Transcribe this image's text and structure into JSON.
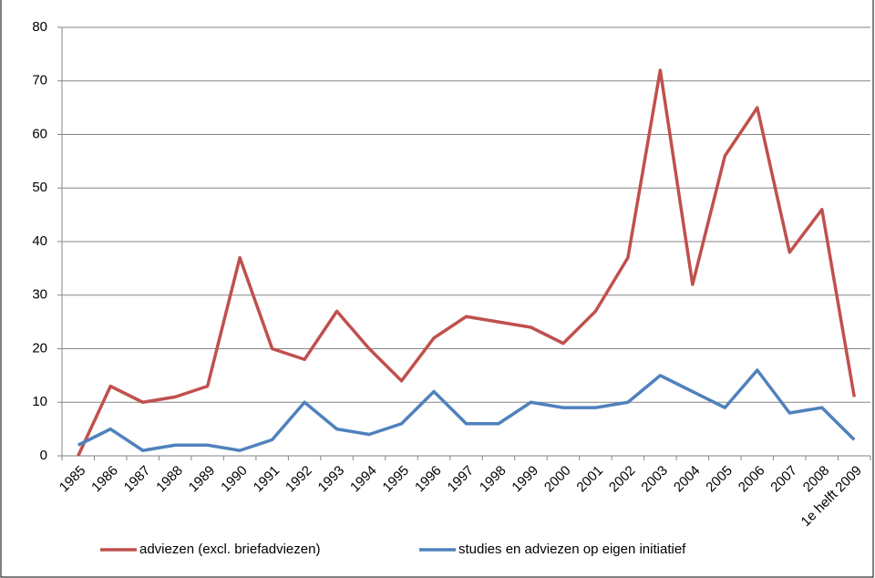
{
  "chart_data": {
    "type": "line",
    "categories": [
      "1985",
      "1986",
      "1987",
      "1988",
      "1989",
      "1990",
      "1991",
      "1992",
      "1993",
      "1994",
      "1995",
      "1996",
      "1997",
      "1998",
      "1999",
      "2000",
      "2001",
      "2002",
      "2003",
      "2004",
      "2005",
      "2006",
      "2007",
      "2008",
      "1e helft 2009"
    ],
    "series": [
      {
        "name": "adviezen (excl. briefadviezen)",
        "color": "#c0504d",
        "values": [
          0,
          13,
          10,
          11,
          13,
          37,
          20,
          18,
          27,
          20,
          14,
          22,
          26,
          25,
          24,
          21,
          27,
          37,
          72,
          32,
          56,
          65,
          38,
          46,
          11
        ]
      },
      {
        "name": "studies en adviezen op eigen initiatief",
        "color": "#4f81bd",
        "values": [
          2,
          5,
          1,
          2,
          2,
          1,
          3,
          10,
          5,
          4,
          6,
          12,
          6,
          6,
          10,
          9,
          9,
          10,
          15,
          12,
          9,
          16,
          8,
          9,
          3
        ]
      }
    ],
    "ylim": [
      0,
      80
    ],
    "yticks": [
      0,
      10,
      20,
      30,
      40,
      50,
      60,
      70,
      80
    ],
    "grid": true,
    "legend": "bottom"
  }
}
